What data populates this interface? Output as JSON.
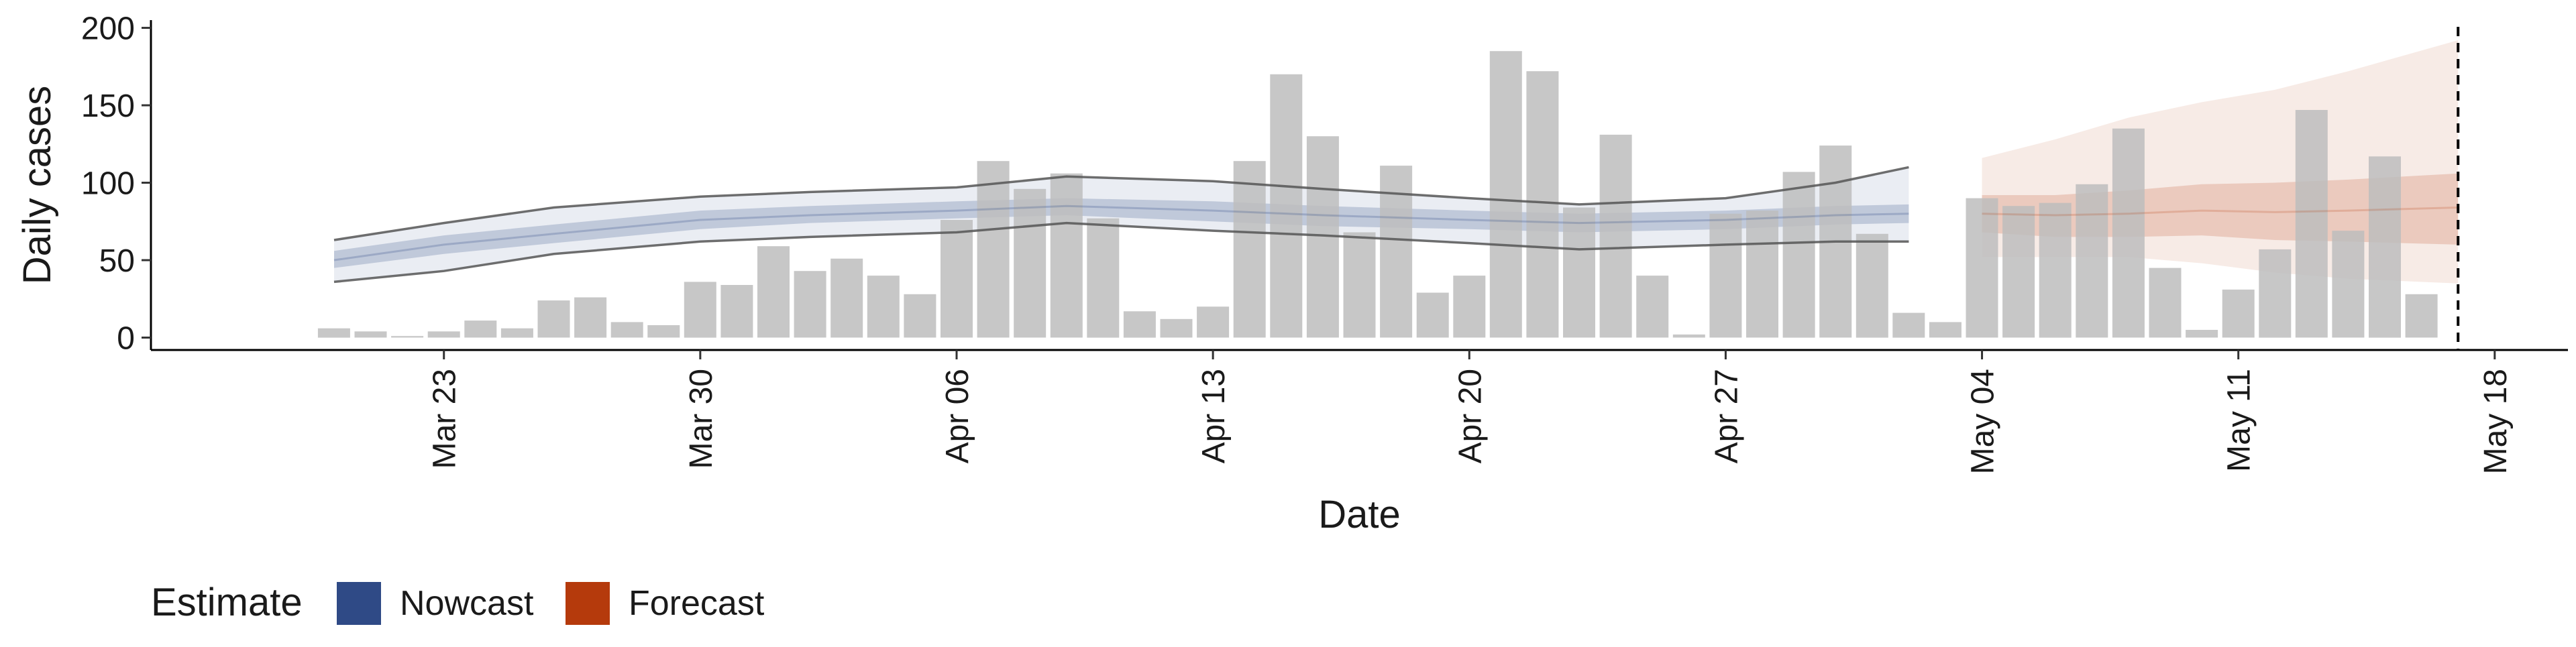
{
  "chart_data": {
    "type": "bar",
    "xlabel": "Date",
    "ylabel": "Daily cases",
    "ylim": [
      -8,
      205
    ],
    "yticks": [
      0,
      50,
      100,
      150,
      200
    ],
    "xlim": [
      "2020-03-15",
      "2020-05-20"
    ],
    "xticks": [
      {
        "date": "2020-03-23",
        "label": "Mar 23"
      },
      {
        "date": "2020-03-30",
        "label": "Mar 30"
      },
      {
        "date": "2020-04-06",
        "label": "Apr 06"
      },
      {
        "date": "2020-04-13",
        "label": "Apr 13"
      },
      {
        "date": "2020-04-20",
        "label": "Apr 20"
      },
      {
        "date": "2020-04-27",
        "label": "Apr 27"
      },
      {
        "date": "2020-05-04",
        "label": "May 04"
      },
      {
        "date": "2020-05-11",
        "label": "May 11"
      },
      {
        "date": "2020-05-18",
        "label": "May 18"
      }
    ],
    "reference_line": {
      "date": "2020-05-17",
      "style": "dashed"
    },
    "grid": false,
    "legend": {
      "position": "bottom-left",
      "title": "Estimate",
      "entries": [
        {
          "label": "Nowcast",
          "color": "#2f4a86"
        },
        {
          "label": "Forecast",
          "color": "#b53a0c"
        }
      ]
    },
    "colors": {
      "bars": "#bdbdbd",
      "nowcast": "#2f4a86",
      "forecast": "#b53a0c",
      "bound_lines": "#555555"
    },
    "bars": {
      "name": "Daily cases",
      "dates": [
        "2020-03-20",
        "2020-03-21",
        "2020-03-22",
        "2020-03-23",
        "2020-03-24",
        "2020-03-25",
        "2020-03-26",
        "2020-03-27",
        "2020-03-28",
        "2020-03-29",
        "2020-03-30",
        "2020-03-31",
        "2020-04-01",
        "2020-04-02",
        "2020-04-03",
        "2020-04-04",
        "2020-04-05",
        "2020-04-06",
        "2020-04-07",
        "2020-04-08",
        "2020-04-09",
        "2020-04-10",
        "2020-04-11",
        "2020-04-12",
        "2020-04-13",
        "2020-04-14",
        "2020-04-15",
        "2020-04-16",
        "2020-04-17",
        "2020-04-18",
        "2020-04-19",
        "2020-04-20",
        "2020-04-21",
        "2020-04-22",
        "2020-04-23",
        "2020-04-24",
        "2020-04-25",
        "2020-04-26",
        "2020-04-27",
        "2020-04-28",
        "2020-04-29",
        "2020-04-30",
        "2020-05-01",
        "2020-05-02",
        "2020-05-03",
        "2020-05-04",
        "2020-05-05",
        "2020-05-06",
        "2020-05-07",
        "2020-05-08",
        "2020-05-09",
        "2020-05-10",
        "2020-05-11",
        "2020-05-12",
        "2020-05-13",
        "2020-05-14",
        "2020-05-15",
        "2020-05-16",
        "2020-05-17"
      ],
      "values": [
        6,
        4,
        1,
        4,
        11,
        6,
        24,
        26,
        10,
        8,
        36,
        34,
        59,
        43,
        51,
        40,
        28,
        76,
        114,
        96,
        106,
        77,
        17,
        12,
        20,
        114,
        170,
        130,
        68,
        111,
        29,
        40,
        185,
        172,
        84,
        131,
        40,
        2,
        80,
        82,
        107,
        124,
        67,
        16,
        10,
        90,
        85,
        87,
        99,
        135,
        45,
        5,
        31,
        57,
        147,
        69,
        117,
        28,
        0
      ]
    },
    "nowcast": {
      "dates": [
        "2020-03-20",
        "2020-03-23",
        "2020-03-26",
        "2020-03-30",
        "2020-04-02",
        "2020-04-06",
        "2020-04-09",
        "2020-04-13",
        "2020-04-16",
        "2020-04-20",
        "2020-04-23",
        "2020-04-27",
        "2020-04-30",
        "2020-05-02"
      ],
      "median": [
        50,
        60,
        67,
        76,
        79,
        82,
        85,
        82,
        79,
        76,
        74,
        76,
        79,
        80
      ],
      "inner_low": [
        45,
        54,
        61,
        70,
        74,
        77,
        79,
        75,
        72,
        70,
        68,
        70,
        73,
        74
      ],
      "inner_high": [
        56,
        66,
        73,
        82,
        85,
        88,
        90,
        88,
        85,
        82,
        80,
        82,
        85,
        86
      ],
      "outer_low": [
        36,
        43,
        54,
        62,
        65,
        68,
        74,
        69,
        66,
        61,
        57,
        60,
        62,
        62
      ],
      "outer_high": [
        63,
        74,
        84,
        91,
        94,
        97,
        104,
        101,
        96,
        90,
        86,
        90,
        100,
        110
      ]
    },
    "forecast": {
      "dates": [
        "2020-05-04",
        "2020-05-06",
        "2020-05-08",
        "2020-05-10",
        "2020-05-12",
        "2020-05-14",
        "2020-05-17"
      ],
      "median": [
        80,
        79,
        80,
        82,
        81,
        82,
        84
      ],
      "inner_low": [
        68,
        65,
        65,
        66,
        63,
        62,
        60
      ],
      "inner_high": [
        92,
        92,
        95,
        99,
        100,
        102,
        106
      ],
      "outer_low": [
        52,
        52,
        52,
        48,
        42,
        38,
        35
      ],
      "outer_high": [
        116,
        128,
        142,
        152,
        160,
        172,
        192
      ]
    }
  }
}
